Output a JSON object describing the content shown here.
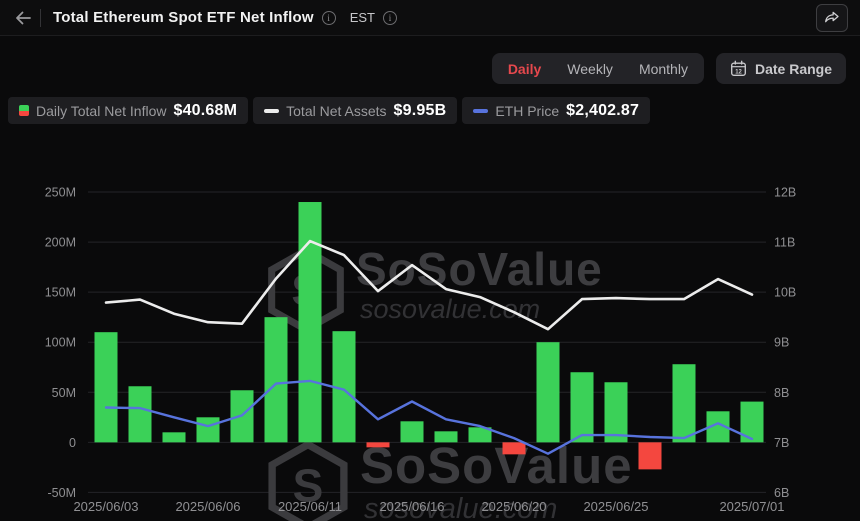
{
  "header": {
    "title": "Total Ethereum Spot ETF Net Inflow",
    "timezone": "EST"
  },
  "toolbar": {
    "tabs": [
      "Daily",
      "Weekly",
      "Monthly"
    ],
    "active_tab": "Daily",
    "date_range_label": "Date Range",
    "calendar_day": "12"
  },
  "legend": {
    "items": [
      {
        "label": "Daily Total Net Inflow",
        "value": "$40.68M",
        "marker": "bar-green-red"
      },
      {
        "label": "Total Net Assets",
        "value": "$9.95B",
        "marker": "white-line"
      },
      {
        "label": "ETH Price",
        "value": "$2,402.87",
        "marker": "blue-line"
      }
    ]
  },
  "watermark": {
    "brand": "SoSoValue",
    "domain": "sosovalue.com"
  },
  "colors": {
    "accent_red": "#e5484d",
    "bar_green": "#3bd158",
    "bar_red": "#f4473f",
    "assets_line": "#ececec",
    "price_line": "#5873dd",
    "gridline": "#242428",
    "axis_text": "#8f8f92"
  },
  "chart_data": {
    "type": "bar+line combo",
    "title": "Total Ethereum Spot ETF Net Inflow",
    "dates": [
      "2025/06/03",
      "2025/06/04",
      "2025/06/05",
      "2025/06/06",
      "2025/06/09",
      "2025/06/10",
      "2025/06/11",
      "2025/06/12",
      "2025/06/13",
      "2025/06/16",
      "2025/06/17",
      "2025/06/18",
      "2025/06/20",
      "2025/06/23",
      "2025/06/24",
      "2025/06/25",
      "2025/06/26",
      "2025/06/27",
      "2025/06/30",
      "2025/07/01"
    ],
    "x_tick_labels": [
      "2025/06/03",
      "2025/06/06",
      "2025/06/11",
      "2025/06/16",
      "2025/06/20",
      "2025/06/25",
      "2025/07/01"
    ],
    "series": [
      {
        "name": "Daily Total Net Inflow",
        "type": "bar",
        "unit": "M USD",
        "axis": "left",
        "values": [
          110,
          56,
          10,
          25,
          52,
          125,
          240,
          111,
          -5,
          21,
          11,
          15,
          -12,
          100,
          70,
          60,
          -27,
          78,
          31,
          40.68
        ]
      },
      {
        "name": "Total Net Assets",
        "type": "line",
        "unit": "B USD",
        "axis": "right",
        "values": [
          9.79,
          9.85,
          9.57,
          9.4,
          9.37,
          10.27,
          11.02,
          10.74,
          10.02,
          10.54,
          10.06,
          9.9,
          9.6,
          9.26,
          9.86,
          9.88,
          9.86,
          9.86,
          10.26,
          9.95
        ]
      },
      {
        "name": "ETH Price",
        "type": "line",
        "unit": "USD",
        "axis": "hidden_price",
        "values": [
          2614,
          2610,
          2548,
          2489,
          2561,
          2774,
          2792,
          2733,
          2535,
          2654,
          2535,
          2489,
          2409,
          2304,
          2429,
          2429,
          2416,
          2409,
          2508,
          2402.87
        ]
      }
    ],
    "left_axis": {
      "ticks": [
        "250M",
        "200M",
        "150M",
        "100M",
        "50M",
        "0",
        "-50M"
      ],
      "max": 250,
      "min": -50,
      "unit": "M"
    },
    "right_axis": {
      "ticks": [
        "12B",
        "11B",
        "10B",
        "9B",
        "8B",
        "7B",
        "6B"
      ],
      "max": 12,
      "min": 6,
      "unit": "B"
    },
    "price_axis": {
      "hidden": true,
      "max": 4058,
      "min": 2045
    },
    "grid": true,
    "legend_position": "top-left"
  }
}
